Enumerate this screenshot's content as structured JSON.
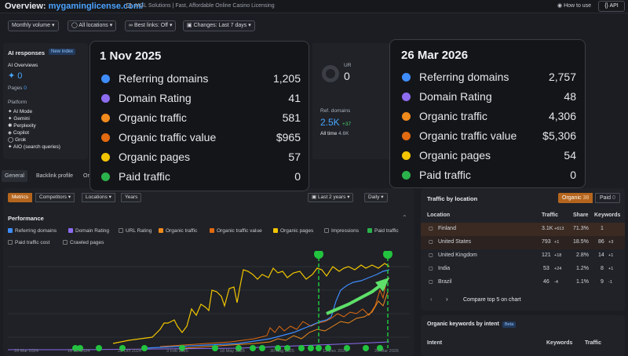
{
  "header": {
    "title_prefix": "Overview:",
    "domain": "mygaminglicense.com/",
    "subtitle": "MGL Solutions | Fast, Affordable Online Casino Licensing",
    "how_to_use": "How to use",
    "api": "API"
  },
  "filters": [
    "Monthly volume",
    "All locations",
    "Best links: Off",
    "Changes: Last 7 days"
  ],
  "ai_panel": {
    "heading": "AI responses",
    "badge": "New index",
    "overviews_label": "AI Overviews",
    "overviews_value": "0",
    "pages_label": "Pages",
    "pages_value": "0",
    "platform_label": "Platform",
    "platforms": [
      "AI Mode",
      "Gemini",
      "Perplexity",
      "Copilot",
      "Grok",
      "AIO (search queries)"
    ]
  },
  "mid_panel": {
    "ur_label": "UR",
    "ur_value": "0",
    "ref_label": "Ref. domains",
    "ref_value": "2.5K",
    "ref_delta": "+37",
    "all_time_label": "All time",
    "all_time_value": "4.6K"
  },
  "tabs": [
    "General",
    "Backlink profile",
    "Or"
  ],
  "chart_controls": {
    "metrics": "Metrics",
    "competitors": "Competitors",
    "locations": "Locations",
    "years": "Years",
    "range": "Last 2 years",
    "granularity": "Daily",
    "section_title": "Performance"
  },
  "legend": [
    {
      "label": "Referring domains",
      "checked": true,
      "color": "#3f8cff"
    },
    {
      "label": "Domain Rating",
      "checked": true,
      "color": "#8e6cf0"
    },
    {
      "label": "URL Rating",
      "checked": false,
      "color": "#888888"
    },
    {
      "label": "Organic traffic",
      "checked": true,
      "color": "#f08a1c"
    },
    {
      "label": "Organic traffic value",
      "checked": true,
      "color": "#e26a10"
    },
    {
      "label": "Organic pages",
      "checked": true,
      "color": "#f2c500"
    },
    {
      "label": "Impressions",
      "checked": false,
      "color": "#888888"
    },
    {
      "label": "Paid traffic",
      "checked": true,
      "color": "#2bb24c"
    },
    {
      "label": "Paid traffic cost",
      "checked": false,
      "color": "#888888"
    },
    {
      "label": "Crawled pages",
      "checked": false,
      "color": "#888888"
    }
  ],
  "x_ticks": [
    "29 Mar 2024",
    "16 Jul 2024",
    "22 Oct 2024",
    "3 Feb 2025",
    "18 May 2025",
    "30 Aug 2025",
    "12 Dec 2025",
    "26 Mar 2026"
  ],
  "tooltip_left": {
    "date": "1 Nov 2025",
    "rows": [
      {
        "label": "Referring domains",
        "value": "1,205",
        "color": "#3f8cff"
      },
      {
        "label": "Domain Rating",
        "value": "41",
        "color": "#8e6cf0"
      },
      {
        "label": "Organic traffic",
        "value": "581",
        "color": "#f08a1c"
      },
      {
        "label": "Organic traffic value",
        "value": "$965",
        "color": "#e26a10"
      },
      {
        "label": "Organic pages",
        "value": "57",
        "color": "#f2c500"
      },
      {
        "label": "Paid traffic",
        "value": "0",
        "color": "#2bb24c"
      }
    ]
  },
  "tooltip_right": {
    "date": "26 Mar 2026",
    "rows": [
      {
        "label": "Referring domains",
        "value": "2,757",
        "color": "#3f8cff"
      },
      {
        "label": "Domain Rating",
        "value": "48",
        "color": "#8e6cf0"
      },
      {
        "label": "Organic traffic",
        "value": "4,306",
        "color": "#f08a1c"
      },
      {
        "label": "Organic traffic value",
        "value": "$5,306",
        "color": "#e26a10"
      },
      {
        "label": "Organic pages",
        "value": "54",
        "color": "#f2c500"
      },
      {
        "label": "Paid traffic",
        "value": "0",
        "color": "#2bb24c"
      }
    ]
  },
  "traffic_by_location": {
    "title": "Traffic by location",
    "organic_label": "Organic",
    "organic_count": "38",
    "paid_label": "Paid",
    "paid_count": "0",
    "columns": [
      "Location",
      "Traffic",
      "Share",
      "Keywords"
    ],
    "rows": [
      {
        "country": "Finland",
        "traffic": "3.1K",
        "delta": "+613",
        "delta_dir": "up",
        "share": "71.3%",
        "keywords": "1",
        "kw_delta": "",
        "kw_dir": ""
      },
      {
        "country": "United States",
        "traffic": "793",
        "delta": "+1",
        "delta_dir": "up",
        "share": "18.5%",
        "keywords": "86",
        "kw_delta": "+3",
        "kw_dir": "up"
      },
      {
        "country": "United Kingdom",
        "traffic": "121",
        "delta": "+18",
        "delta_dir": "up",
        "share": "2.8%",
        "keywords": "14",
        "kw_delta": "+1",
        "kw_dir": "up"
      },
      {
        "country": "India",
        "traffic": "53",
        "delta": "+24",
        "delta_dir": "up",
        "share": "1.2%",
        "keywords": "8",
        "kw_delta": "+1",
        "kw_dir": "up"
      },
      {
        "country": "Brazil",
        "traffic": "46",
        "delta": "-4",
        "delta_dir": "down",
        "share": "1.1%",
        "keywords": "9",
        "kw_delta": "-1",
        "kw_dir": "down"
      }
    ],
    "compare_label": "Compare top 5 on chart"
  },
  "keywords_by_intent": {
    "title": "Organic keywords by intent",
    "badge": "Beta",
    "columns": [
      "Intent",
      "Keywords",
      "Traffic"
    ]
  },
  "colors": {
    "accent_blue": "#49a6ff",
    "organic_active": "#b5651d",
    "marker_green": "#2bd24c"
  }
}
